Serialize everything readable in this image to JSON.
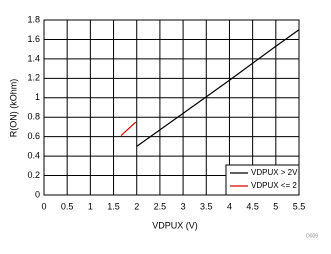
{
  "chart_data": {
    "type": "line",
    "xlabel": "VDPUX (V)",
    "ylabel": "R(ON) (kOhm)",
    "note": "D009",
    "series": [
      {
        "name": "VDPUX > 2V",
        "color": "#000000",
        "x": [
          2,
          3,
          4,
          5,
          5.5
        ],
        "values": [
          0.5,
          0.84,
          1.18,
          1.53,
          1.7
        ]
      },
      {
        "name": "VDPUX <= 2",
        "color": "#e00000",
        "x": [
          1.66,
          1.98
        ],
        "values": [
          0.61,
          0.75
        ]
      }
    ],
    "xlim": [
      0,
      5.5
    ],
    "xticks": [
      0,
      0.5,
      1,
      1.5,
      2,
      2.5,
      3,
      3.5,
      4,
      4.5,
      5,
      5.5
    ],
    "ylim": [
      0,
      1.8
    ],
    "yticks": [
      0,
      0.2,
      0.4,
      0.6,
      0.8,
      1,
      1.2,
      1.4,
      1.6,
      1.8
    ],
    "grid": true,
    "legend": "lower right"
  }
}
